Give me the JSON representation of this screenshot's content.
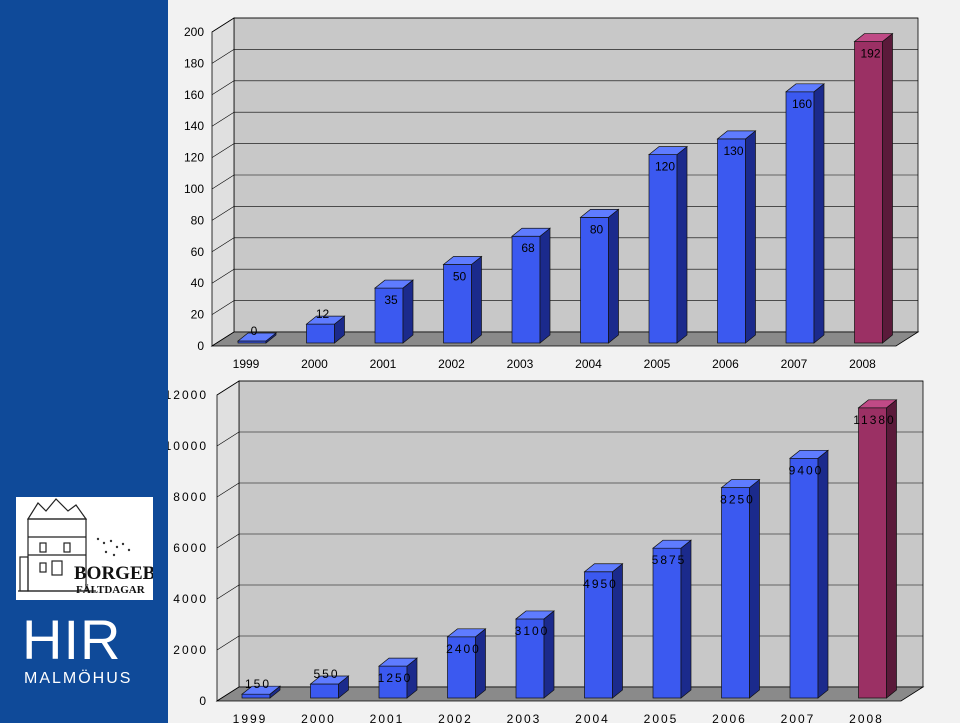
{
  "colors": {
    "sidebar": "#0f4a99",
    "panel_bg": "#f2f2f2",
    "bar_blue_front": "#3b59f0",
    "bar_blue_side": "#1b2a8c",
    "bar_blue_top": "#5f7cff",
    "bar_last_front": "#9b3064",
    "bar_last_side": "#5a1a3a",
    "bar_last_top": "#c04a86",
    "wall": "#c8c8c8",
    "floor": "#8a8a8a",
    "gridline": "#000000"
  },
  "sidebar": {
    "logo_title": "BORGEBY",
    "logo_subtitle": "FÄLTDAGAR",
    "hir_word": "HIR",
    "hir_sub": "MALMÖHUS"
  },
  "chart_data": [
    {
      "type": "bar",
      "categories": [
        "1999",
        "2000",
        "2001",
        "2002",
        "2003",
        "2004",
        "2005",
        "2006",
        "2007",
        "2008"
      ],
      "values": [
        0,
        12,
        35,
        50,
        68,
        80,
        120,
        130,
        160,
        192
      ],
      "data_labels": [
        "0",
        "12",
        "35",
        "50",
        "68",
        "80",
        "120",
        "130",
        "160",
        "192"
      ],
      "ylim": [
        0,
        200
      ],
      "yticks": [
        0,
        20,
        40,
        60,
        80,
        100,
        120,
        140,
        160,
        180,
        200
      ],
      "ytick_labels": [
        "0",
        "20",
        "40",
        "60",
        "80",
        "100",
        "120",
        "140",
        "160",
        "180",
        "200"
      ],
      "grid": true,
      "highlight_last": true,
      "title": "",
      "xlabel": "",
      "ylabel": ""
    },
    {
      "type": "bar",
      "categories": [
        "1999",
        "2000",
        "2001",
        "2002",
        "2003",
        "2004",
        "2005",
        "2006",
        "2007",
        "2008"
      ],
      "values": [
        150,
        550,
        1250,
        2400,
        3100,
        4950,
        5875,
        8250,
        9400,
        11380
      ],
      "data_labels": [
        "150",
        "550",
        "1250",
        "2400",
        "3100",
        "4950",
        "5875",
        "8250",
        "9400",
        "11380"
      ],
      "ylim": [
        0,
        12000
      ],
      "yticks": [
        0,
        2000,
        4000,
        6000,
        8000,
        10000,
        12000
      ],
      "ytick_labels": [
        "0",
        "2000",
        "4000",
        "6000",
        "8000",
        "10000",
        "12000"
      ],
      "grid": true,
      "highlight_last": true,
      "title": "",
      "xlabel": "",
      "ylabel": ""
    }
  ]
}
